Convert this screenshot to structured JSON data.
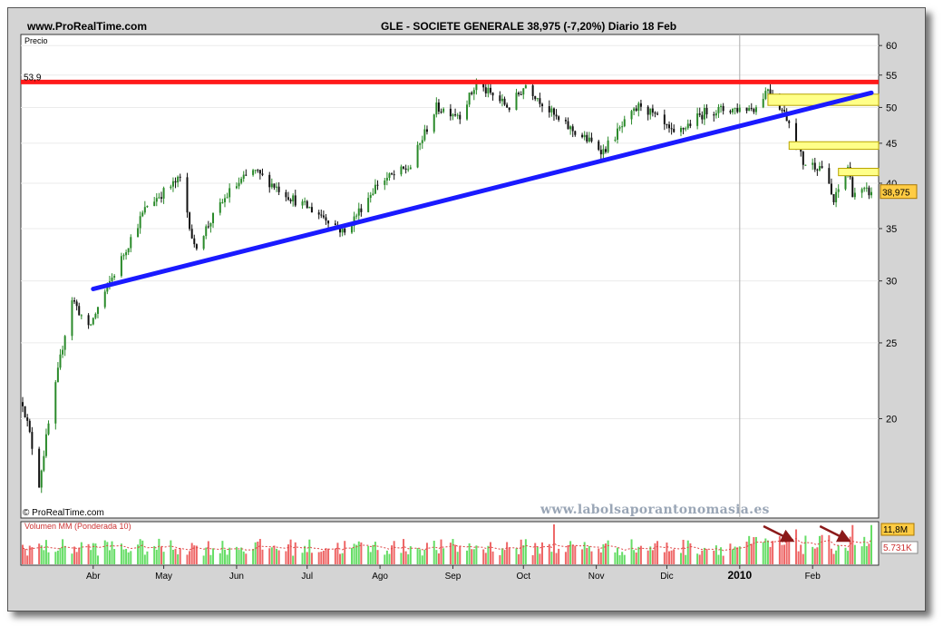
{
  "header": {
    "site": "www.ProRealTime.com",
    "title": "GLE - SOCIETE GENERALE    38,975 (-7,20%)    Diario  18 Feb"
  },
  "watermark": "www.labolsaporantonomasia.es",
  "chart_data": [
    {
      "type": "candlestick",
      "panel_label": "Precio",
      "copyright": "© ProRealTime.com",
      "y_scale": "log",
      "ylim": [
        16,
        61
      ],
      "y_ticks": [
        20,
        25,
        30,
        35,
        40,
        45,
        50,
        55,
        60
      ],
      "x_labels": [
        "Abr",
        "May",
        "Jun",
        "Jul",
        "Ago",
        "Sep",
        "Oct",
        "Nov",
        "Dic",
        "2010",
        "Feb"
      ],
      "x_range": [
        "2009-03-02",
        "2010-02-26"
      ],
      "last_price": "38,975",
      "colors": {
        "up": "#2a8a2a",
        "down": "#111111",
        "resistance": "#ff1a1a",
        "trendline": "#1a1aff",
        "gap_box": "#ffff88"
      },
      "resistance": {
        "value": 53.9,
        "label": "53,9"
      },
      "trendline": {
        "from": {
          "date": "2009-04-01",
          "price": 29.3
        },
        "to": {
          "date": "2010-02-26",
          "price": 52.2
        }
      },
      "gap_boxes": [
        {
          "from_date": "2010-01-13",
          "top": 52.0,
          "bottom": 50.3
        },
        {
          "from_date": "2010-01-22",
          "top": 45.2,
          "bottom": 44.2
        },
        {
          "from_date": "2010-02-12",
          "top": 41.8,
          "bottom": 40.9
        }
      ],
      "key_points": [
        {
          "date": "2009-03-02",
          "close": 21.0
        },
        {
          "date": "2009-03-09",
          "close": 16.5
        },
        {
          "date": "2009-03-16",
          "close": 22.0
        },
        {
          "date": "2009-03-23",
          "close": 28.5
        },
        {
          "date": "2009-03-30",
          "close": 26.0
        },
        {
          "date": "2009-04-13",
          "close": 32.0
        },
        {
          "date": "2009-04-24",
          "close": 37.5
        },
        {
          "date": "2009-05-08",
          "close": 40.5
        },
        {
          "date": "2009-05-14",
          "close": 33.0
        },
        {
          "date": "2009-05-29",
          "close": 39.0
        },
        {
          "date": "2009-06-08",
          "close": 41.5
        },
        {
          "date": "2009-06-26",
          "close": 38.0
        },
        {
          "date": "2009-07-10",
          "close": 36.0
        },
        {
          "date": "2009-07-17",
          "close": 34.5
        },
        {
          "date": "2009-07-31",
          "close": 40.0
        },
        {
          "date": "2009-08-14",
          "close": 42.0
        },
        {
          "date": "2009-08-25",
          "close": 50.0
        },
        {
          "date": "2009-09-04",
          "close": 49.0
        },
        {
          "date": "2009-09-11",
          "close": 53.5
        },
        {
          "date": "2009-09-25",
          "close": 50.0
        },
        {
          "date": "2009-10-02",
          "close": 53.5
        },
        {
          "date": "2009-10-16",
          "close": 48.0
        },
        {
          "date": "2009-11-04",
          "close": 44.0
        },
        {
          "date": "2009-11-20",
          "close": 50.5
        },
        {
          "date": "2009-12-04",
          "close": 46.0
        },
        {
          "date": "2009-12-18",
          "close": 49.5
        },
        {
          "date": "2010-01-08",
          "close": 50.0
        },
        {
          "date": "2010-01-13",
          "close": 53.0
        },
        {
          "date": "2010-01-22",
          "close": 48.0
        },
        {
          "date": "2010-01-28",
          "close": 42.5
        },
        {
          "date": "2010-02-05",
          "close": 42.0
        },
        {
          "date": "2010-02-10",
          "close": 37.8
        },
        {
          "date": "2010-02-16",
          "close": 42.0
        },
        {
          "date": "2010-02-18",
          "close": 38.975
        }
      ]
    },
    {
      "type": "bar",
      "panel_label": "Volumen MM (Ponderada 10)",
      "unit": "M",
      "current_volume": "11,8M",
      "moving_average": "5.731K",
      "colors": {
        "up": "#66dd66",
        "down": "#ee6666",
        "ma": "#dd4444",
        "arrow": "#8b1a1a"
      },
      "volume_range": [
        0,
        12
      ],
      "average_level": 5.7,
      "notable_peaks": [
        {
          "date": "2009-10-14",
          "volume": 12.0
        },
        {
          "date": "2010-01-25",
          "volume": 10.5
        },
        {
          "date": "2010-02-18",
          "volume": 11.8
        }
      ],
      "arrows_point_to": [
        "2010-01-25",
        "2010-02-18"
      ]
    }
  ]
}
